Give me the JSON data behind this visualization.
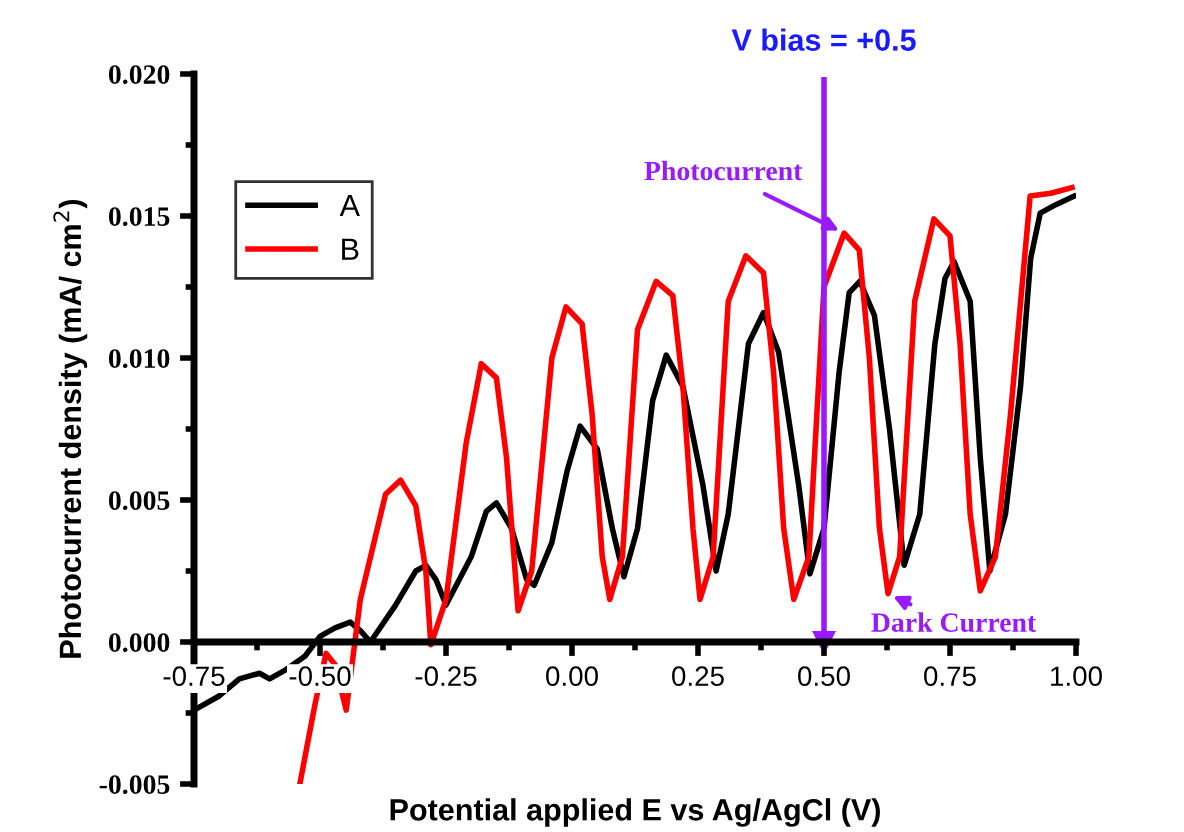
{
  "chart_data": {
    "type": "line",
    "xlabel": "Potential applied E vs Ag/AgCl (V)",
    "ylabel": "Photocurrent density (mA/ cm$^{2}$)",
    "xlim": [
      -0.75,
      1.0
    ],
    "xticks": [
      {
        "value": -0.75,
        "label": "-0.75"
      },
      {
        "value": -0.5,
        "label": "-0.50"
      },
      {
        "value": -0.25,
        "label": "-0.25"
      },
      {
        "value": 0,
        "label": "0.00"
      },
      {
        "value": 0.25,
        "label": "0.25"
      },
      {
        "value": 0.5,
        "label": "0.50"
      },
      {
        "value": 0.75,
        "label": "0.75"
      },
      {
        "value": 1.0,
        "label": "1.00"
      }
    ],
    "ylim": [
      -0.005,
      0.02
    ],
    "yticks": [
      {
        "value": -0.005,
        "label": "-0.005"
      },
      {
        "value": 0,
        "label": "0.000"
      },
      {
        "value": 0.005,
        "label": "0.005"
      },
      {
        "value": 0.01,
        "label": "0.010"
      },
      {
        "value": 0.015,
        "label": "0.015"
      },
      {
        "value": 0.02,
        "label": "0.020"
      }
    ],
    "grid": false,
    "legend": "top left",
    "marker": "none",
    "line_style": "solid",
    "series": [
      {
        "name": "A",
        "color": "#000000",
        "x": [
          -0.75,
          -0.7,
          -0.66,
          -0.62,
          -0.6,
          -0.57,
          -0.53,
          -0.5,
          -0.47,
          -0.44,
          -0.42,
          -0.4,
          -0.35,
          -0.31,
          -0.29,
          -0.27,
          -0.25,
          -0.2,
          -0.17,
          -0.15,
          -0.12,
          -0.09,
          -0.075,
          -0.04,
          -0.01,
          0.016,
          0.05,
          0.08,
          0.103,
          0.13,
          0.16,
          0.187,
          0.22,
          0.26,
          0.286,
          0.31,
          0.35,
          0.38,
          0.41,
          0.45,
          0.472,
          0.5,
          0.53,
          0.55,
          0.571,
          0.6,
          0.63,
          0.659,
          0.69,
          0.72,
          0.74,
          0.758,
          0.79,
          0.81,
          0.829,
          0.86,
          0.89,
          0.91,
          0.929,
          0.96,
          0.996
        ],
        "values": [
          -0.0024,
          -0.0019,
          -0.0013,
          -0.0011,
          -0.0013,
          -0.001,
          -0.0005,
          0.0002,
          0.0005,
          0.0007,
          0.0004,
          0.0,
          0.0013,
          0.0025,
          0.0027,
          0.0022,
          0.0013,
          0.003,
          0.0046,
          0.0049,
          0.004,
          0.0022,
          0.002,
          0.0035,
          0.006,
          0.0076,
          0.0068,
          0.004,
          0.0023,
          0.004,
          0.0085,
          0.0101,
          0.009,
          0.0055,
          0.0025,
          0.0045,
          0.0105,
          0.0116,
          0.0102,
          0.0055,
          0.0024,
          0.004,
          0.0095,
          0.0123,
          0.0127,
          0.0115,
          0.0075,
          0.0027,
          0.0045,
          0.0105,
          0.0128,
          0.0134,
          0.012,
          0.0065,
          0.0025,
          0.0045,
          0.009,
          0.0135,
          0.0151,
          0.0154,
          0.0157
        ]
      },
      {
        "name": "B",
        "color": "#ff0000",
        "x": [
          -0.54,
          -0.51,
          -0.488,
          -0.47,
          -0.448,
          -0.42,
          -0.37,
          -0.34,
          -0.31,
          -0.29,
          -0.28,
          -0.25,
          -0.21,
          -0.18,
          -0.15,
          -0.13,
          -0.107,
          -0.08,
          -0.04,
          -0.012,
          0.02,
          0.04,
          0.06,
          0.075,
          0.1,
          0.13,
          0.167,
          0.2,
          0.22,
          0.24,
          0.254,
          0.28,
          0.31,
          0.345,
          0.38,
          0.4,
          0.42,
          0.44,
          0.47,
          0.5,
          0.54,
          0.57,
          0.59,
          0.61,
          0.627,
          0.65,
          0.68,
          0.718,
          0.75,
          0.77,
          0.79,
          0.81,
          0.84,
          0.87,
          0.909,
          0.95,
          0.992
        ],
        "values": [
          -0.005,
          -0.0022,
          -0.0004,
          -0.0008,
          -0.0024,
          0.0015,
          0.0052,
          0.0057,
          0.0048,
          0.0025,
          -0.0001,
          0.0015,
          0.007,
          0.0098,
          0.0093,
          0.0065,
          0.0011,
          0.0025,
          0.01,
          0.0118,
          0.0112,
          0.008,
          0.003,
          0.0015,
          0.003,
          0.011,
          0.0127,
          0.0122,
          0.009,
          0.004,
          0.0015,
          0.003,
          0.012,
          0.0136,
          0.013,
          0.0095,
          0.004,
          0.0015,
          0.003,
          0.0125,
          0.0144,
          0.0138,
          0.01,
          0.004,
          0.0017,
          0.003,
          0.012,
          0.0149,
          0.0143,
          0.0105,
          0.0045,
          0.0018,
          0.003,
          0.008,
          0.0157,
          0.0158,
          0.016
        ]
      }
    ],
    "ref_lines": [
      {
        "axis": "x",
        "value": 0.5,
        "label": "V bias = +0.5",
        "color": "#9a1aff"
      }
    ],
    "annotations": [
      {
        "text": "Photocurrent",
        "x": 0.54,
        "y": 0.0144
      },
      {
        "text": "Dark Current",
        "x": 0.627,
        "y": 0.0017
      }
    ]
  }
}
